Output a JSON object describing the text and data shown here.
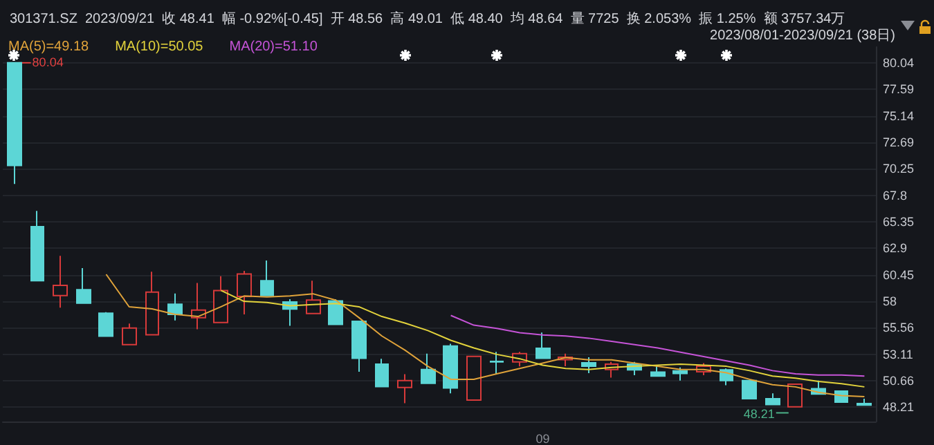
{
  "chart_data": {
    "type": "candlestick",
    "title": "301371.SZ  2023/09/21  收 48.41  幅 -0.92%[-0.45]  开 48.56  高 49.01  低 48.40  均 48.64  量 7725  换 2.053%  振 1.25%  额 3757.34万",
    "annotations": [
      "2023/08/01-2023/09/21 (38日)",
      "80.04",
      "48.21"
    ],
    "categories": [
      null,
      null,
      null,
      null,
      null,
      null,
      null,
      null,
      null,
      null,
      null,
      null,
      null,
      null,
      null,
      null,
      null,
      null,
      null,
      null,
      null,
      null,
      null,
      "09",
      null,
      null,
      null,
      null,
      null,
      null,
      null,
      null,
      null,
      null,
      null,
      null,
      null,
      null
    ],
    "ohlc": [
      [
        80.04,
        80.04,
        68.85,
        70.55
      ],
      [
        64.9,
        66.35,
        59.91,
        59.91
      ],
      [
        58.54,
        62.2,
        57.42,
        59.48
      ],
      [
        59.07,
        61.07,
        57.83,
        57.83
      ],
      [
        56.91,
        57.0,
        54.79,
        54.79
      ],
      [
        54.0,
        55.95,
        54.0,
        55.54
      ],
      [
        54.91,
        60.74,
        54.91,
        58.86
      ],
      [
        57.74,
        58.73,
        56.24,
        56.79
      ],
      [
        56.49,
        59.7,
        55.42,
        57.2
      ],
      [
        56.04,
        60.32,
        56.04,
        58.99
      ],
      [
        58.45,
        60.82,
        56.79,
        60.53
      ],
      [
        59.91,
        61.78,
        58.54,
        58.54
      ],
      [
        57.95,
        58.2,
        55.74,
        57.29
      ],
      [
        56.87,
        59.91,
        56.87,
        58.12
      ],
      [
        58.04,
        58.2,
        55.87,
        55.87
      ],
      [
        56.16,
        56.16,
        51.49,
        52.74
      ],
      [
        52.2,
        52.7,
        50.12,
        50.12
      ],
      [
        50.05,
        51.28,
        48.59,
        50.68
      ],
      [
        51.71,
        53.17,
        50.43,
        50.43
      ],
      [
        53.87,
        54.08,
        49.5,
        50.0
      ],
      [
        48.88,
        52.92,
        48.88,
        52.92
      ],
      [
        52.45,
        53.33,
        51.28,
        52.41
      ],
      [
        52.41,
        53.33,
        51.99,
        53.17
      ],
      [
        53.67,
        55.12,
        52.74,
        52.74
      ],
      [
        52.62,
        53.17,
        52.0,
        52.83
      ],
      [
        52.33,
        52.83,
        51.37,
        52.0
      ],
      [
        51.71,
        52.4,
        50.96,
        52.2
      ],
      [
        52.2,
        52.4,
        51.17,
        51.67
      ],
      [
        51.46,
        52.0,
        51.09,
        51.09
      ],
      [
        51.58,
        51.9,
        50.68,
        51.33
      ],
      [
        51.5,
        52.29,
        51.17,
        52.0
      ],
      [
        51.67,
        51.8,
        50.25,
        50.68
      ],
      [
        50.68,
        50.68,
        49.0,
        49.0
      ],
      [
        49.0,
        49.5,
        48.4,
        48.46
      ],
      [
        48.25,
        50.34,
        48.21,
        50.34
      ],
      [
        49.93,
        50.68,
        49.43,
        49.43
      ],
      [
        49.71,
        49.71,
        48.68,
        48.68
      ],
      [
        48.56,
        49.01,
        48.4,
        48.41
      ]
    ],
    "colors": [
      "#5cd6d6",
      "#5cd6d6",
      "#d83a3a",
      "#5cd6d6",
      "#5cd6d6",
      "#d83a3a",
      "#d83a3a",
      "#5cd6d6",
      "#d83a3a",
      "#d83a3a",
      "#d83a3a",
      "#5cd6d6",
      "#5cd6d6",
      "#d83a3a",
      "#5cd6d6",
      "#5cd6d6",
      "#5cd6d6",
      "#d83a3a",
      "#5cd6d6",
      "#5cd6d6",
      "#d83a3a",
      "#5cd6d6",
      "#d83a3a",
      "#5cd6d6",
      "#d83a3a",
      "#5cd6d6",
      "#d83a3a",
      "#5cd6d6",
      "#5cd6d6",
      "#5cd6d6",
      "#d83a3a",
      "#5cd6d6",
      "#5cd6d6",
      "#5cd6d6",
      "#d83a3a",
      "#5cd6d6",
      "#5cd6d6",
      "#5cd6d6"
    ],
    "series": [
      {
        "type": "line",
        "name": "MA(5)=49.18",
        "color": "#e0a33a",
        "values": [
          null,
          null,
          null,
          null,
          60.5,
          57.5,
          57.3,
          56.8,
          56.6,
          57.5,
          58.5,
          58.4,
          58.5,
          58.7,
          58.1,
          56.5,
          54.8,
          53.5,
          52.0,
          50.8,
          50.8,
          51.3,
          51.8,
          52.3,
          52.8,
          52.6,
          52.6,
          52.3,
          52.0,
          51.7,
          51.7,
          51.4,
          50.8,
          50.3,
          50.1,
          49.6,
          49.3,
          49.2
        ]
      },
      {
        "type": "line",
        "name": "MA(10)=50.05",
        "color": "#e3d33c",
        "values": [
          null,
          null,
          null,
          null,
          null,
          null,
          null,
          null,
          null,
          59.0,
          58.0,
          57.9,
          57.6,
          57.7,
          57.8,
          57.5,
          56.6,
          56.0,
          55.3,
          54.4,
          53.7,
          53.1,
          52.7,
          52.1,
          51.8,
          51.7,
          51.9,
          52.0,
          52.1,
          52.2,
          52.1,
          52.0,
          51.6,
          51.1,
          50.9,
          50.6,
          50.4,
          50.1
        ]
      },
      {
        "type": "line",
        "name": "MA(20)=51.10",
        "color": "#c654d8",
        "values": [
          null,
          null,
          null,
          null,
          null,
          null,
          null,
          null,
          null,
          null,
          null,
          null,
          null,
          null,
          null,
          null,
          null,
          null,
          null,
          56.7,
          55.8,
          55.5,
          55.1,
          54.9,
          54.8,
          54.6,
          54.3,
          54.0,
          53.7,
          53.3,
          52.9,
          52.5,
          52.1,
          51.6,
          51.3,
          51.2,
          51.2,
          51.1
        ]
      }
    ],
    "ylim": [
      46.9,
      81.5
    ],
    "yticks": [
      48.21,
      50.66,
      53.11,
      55.56,
      58,
      60.45,
      62.9,
      65.35,
      67.8,
      70.25,
      72.69,
      75.14,
      77.59,
      80.04
    ],
    "grid": "y",
    "legend": "top left",
    "marker": "none"
  }
}
